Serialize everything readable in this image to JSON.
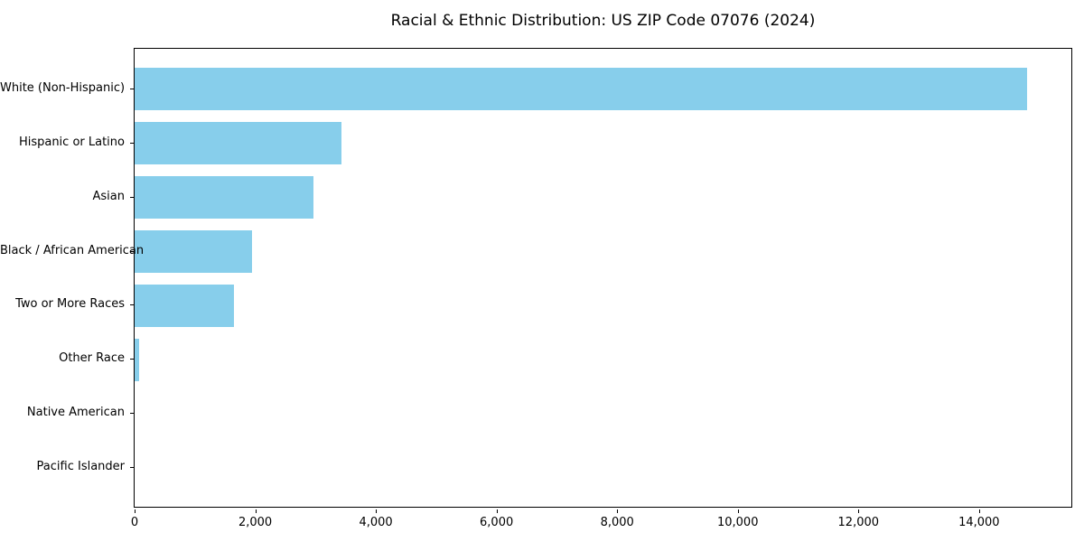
{
  "chart_data": {
    "type": "bar",
    "orientation": "horizontal",
    "title": "Racial & Ethnic Distribution: US ZIP Code 07076 (2024)",
    "categories": [
      "White (Non-Hispanic)",
      "Hispanic or Latino",
      "Asian",
      "Black / African American",
      "Two or More Races",
      "Other Race",
      "Native American",
      "Pacific Islander"
    ],
    "values": [
      14800,
      3430,
      2970,
      1950,
      1650,
      75,
      0,
      0
    ],
    "bar_color": "#87CEEB",
    "xlabel": "",
    "ylabel": "",
    "xlim": [
      0,
      15560
    ],
    "x_ticks": [
      0,
      2000,
      4000,
      6000,
      8000,
      10000,
      12000,
      14000
    ],
    "x_tick_labels": [
      "0",
      "2,000",
      "4,000",
      "6,000",
      "8,000",
      "10,000",
      "12,000",
      "14,000"
    ],
    "grid": false,
    "legend_position": "none",
    "background_color": "#ffffff",
    "frame_color": "#000000"
  }
}
